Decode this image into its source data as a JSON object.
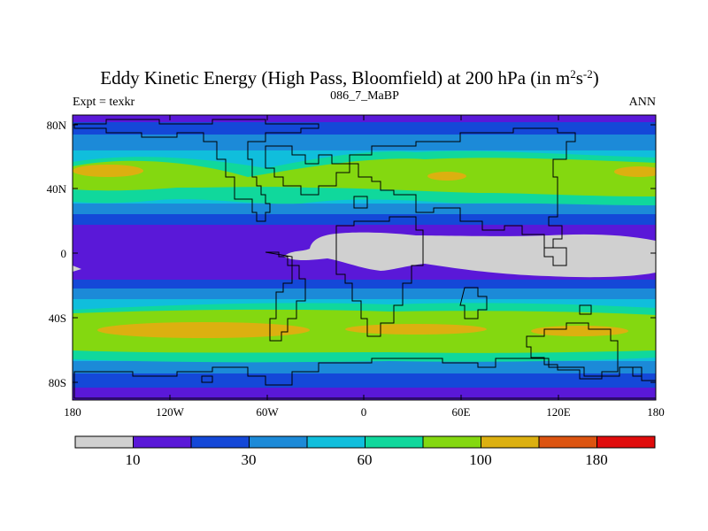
{
  "title": "Eddy Kinetic Energy (High Pass, Bloomfield) at 200 hPa (in m",
  "title_unit_sup1": "2",
  "title_unit_mid": "s",
  "title_unit_sup2": "-2",
  "title_close": ")",
  "subtitle_left": "Expt = texkr",
  "subtitle_center": "086_7_MaBP",
  "subtitle_right": "ANN",
  "map": {
    "lon_ticks": [
      "180",
      "120W",
      "60W",
      "0",
      "60E",
      "120E",
      "180"
    ],
    "lat_ticks": [
      "80N",
      "40N",
      "0",
      "40S",
      "80S"
    ]
  },
  "colorbar": {
    "colors": [
      "#d0d0d0",
      "#5a18d8",
      "#1448d8",
      "#1c8ad8",
      "#10bedc",
      "#10d89c",
      "#84d810",
      "#dcb010",
      "#dc5410",
      "#e00c0c"
    ],
    "labels": [
      "10",
      "30",
      "60",
      "100",
      "180"
    ]
  },
  "palette": {
    "land_outline": "#000000",
    "background": "#ffffff"
  }
}
